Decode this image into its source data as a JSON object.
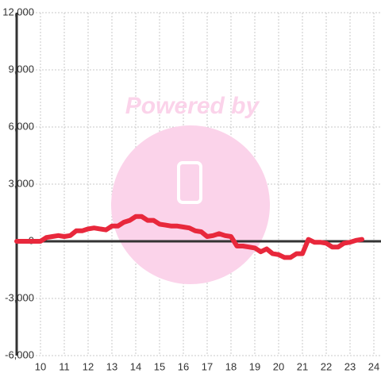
{
  "chart_data": {
    "type": "line",
    "watermark": "Powered by",
    "color": "#e8283c",
    "grid": true,
    "xlim": [
      9,
      24.3
    ],
    "ylim": [
      -6000,
      12000
    ],
    "xticks": [
      10,
      11,
      12,
      13,
      14,
      15,
      16,
      17,
      18,
      19,
      20,
      21,
      22,
      23,
      24
    ],
    "yticks": [
      {
        "value": -6000,
        "label": "-6,000"
      },
      {
        "value": -3000,
        "label": "-3,000"
      },
      0,
      {
        "value": 3000,
        "label": "3,000"
      },
      {
        "value": 6000,
        "label": "6,000"
      },
      {
        "value": 9000,
        "label": "9,000"
      },
      {
        "value": 12000,
        "label": "12,000"
      }
    ],
    "x": [
      9,
      9.5,
      10,
      10.25,
      10.5,
      10.75,
      11,
      11.25,
      11.5,
      11.75,
      12,
      12.25,
      12.5,
      12.75,
      13,
      13.25,
      13.5,
      13.75,
      14,
      14.25,
      14.5,
      14.75,
      15,
      15.25,
      15.5,
      15.75,
      16,
      16.25,
      16.5,
      16.75,
      17,
      17.25,
      17.5,
      17.75,
      18,
      18.25,
      18.5,
      18.75,
      19,
      19.25,
      19.5,
      19.75,
      20,
      20.25,
      20.5,
      20.75,
      21,
      21.25,
      21.5,
      21.75,
      22,
      22.25,
      22.5,
      22.75,
      23,
      23.25,
      23.5
    ],
    "values": [
      0,
      0,
      0,
      200,
      250,
      300,
      250,
      300,
      550,
      550,
      650,
      700,
      650,
      600,
      800,
      800,
      1000,
      1100,
      1300,
      1300,
      1100,
      1100,
      900,
      850,
      800,
      800,
      750,
      700,
      550,
      500,
      250,
      300,
      400,
      300,
      250,
      -250,
      -250,
      -300,
      -350,
      -550,
      -400,
      -650,
      -700,
      -850,
      -850,
      -650,
      -650,
      100,
      -50,
      -50,
      -100,
      -300,
      -300,
      -100,
      -50,
      50,
      100
    ]
  }
}
